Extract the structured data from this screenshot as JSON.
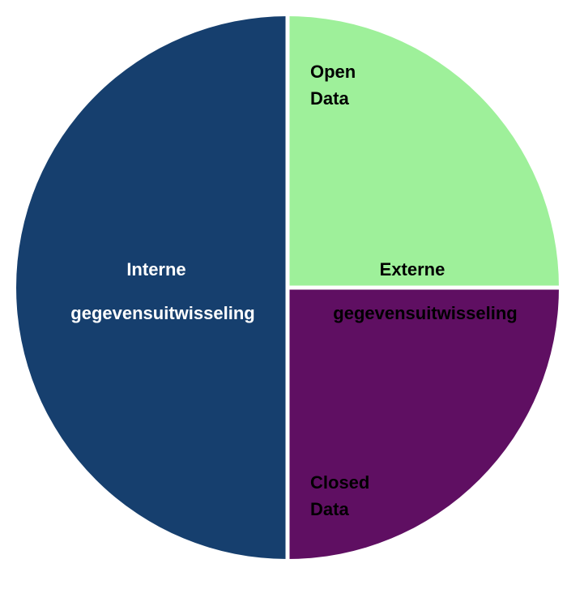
{
  "diagram": {
    "colors": {
      "internal": "#163f6e",
      "open_data": "#9ef09a",
      "closed_data": "#5f0f62",
      "divider": "#ffffff",
      "dark_text": "#000000",
      "light_text": "#ffffff"
    },
    "segments": {
      "internal": {
        "label_line1": "Interne",
        "label_line2": "gegevensuitwisseling"
      },
      "external": {
        "label_line1": "Externe",
        "label_line2": "gegevensuitwisseling"
      },
      "open_data": {
        "label_line1": "Open",
        "label_line2": "Data"
      },
      "closed_data": {
        "label_line1": "Closed",
        "label_line2": "Data"
      }
    }
  }
}
